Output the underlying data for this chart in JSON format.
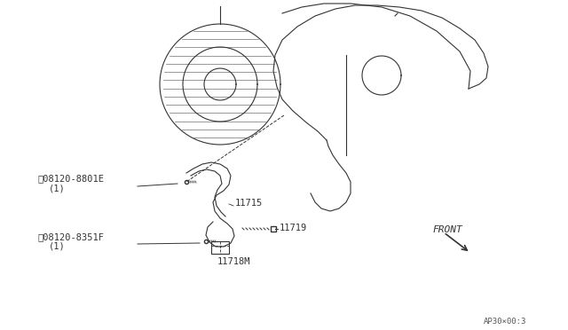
{
  "bg_color": "#ffffff",
  "line_color": "#333333",
  "label_color": "#333333",
  "fig_width": 6.4,
  "fig_height": 3.72,
  "dpi": 100,
  "labels": {
    "part_A": "°08120-8801E",
    "part_A_sub": "(1)",
    "part_B": "°08120-8351F",
    "part_B_sub": "(1)",
    "part_11715": "11715",
    "part_11718M": "11718M",
    "part_11719": "11719",
    "front": "FRONT",
    "ref": "AP30×00:3"
  }
}
